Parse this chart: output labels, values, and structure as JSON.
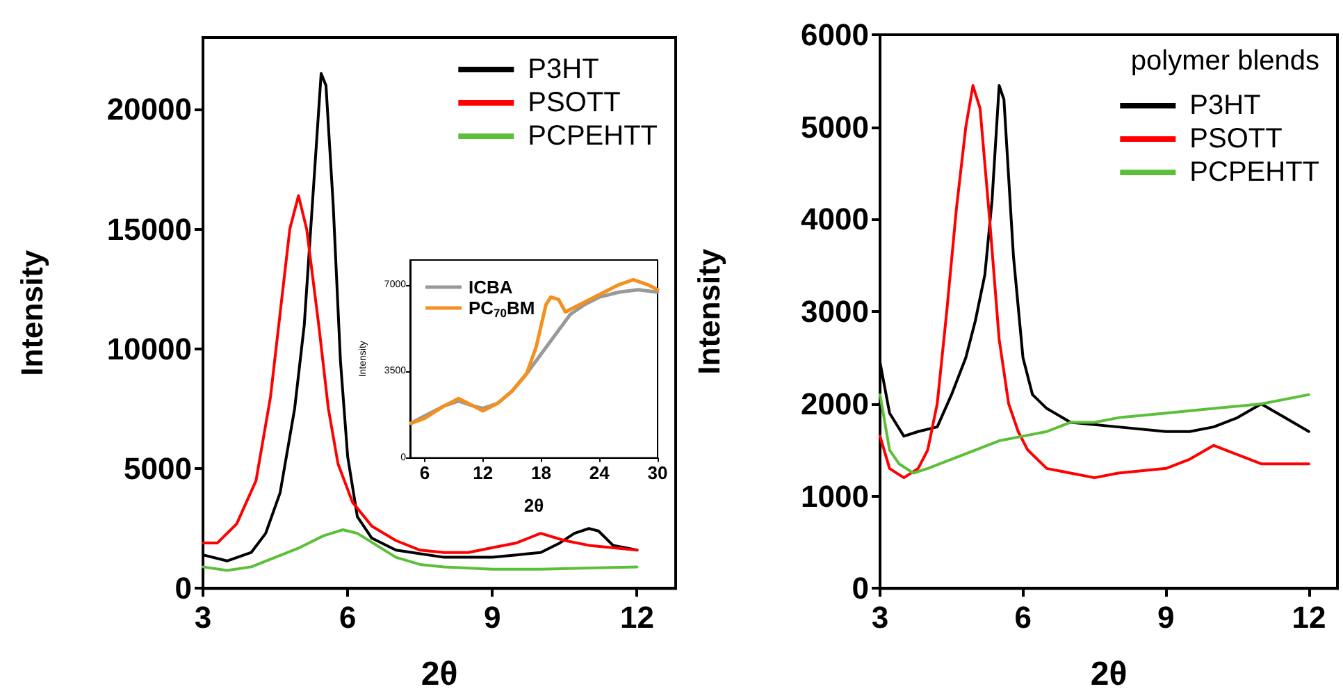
{
  "chart_data": [
    {
      "type": "line",
      "xlabel": "2θ",
      "ylabel": "Intensity",
      "xlim": [
        3,
        12.8
      ],
      "ylim": [
        0,
        23000
      ],
      "xticks": [
        3,
        6,
        9,
        12
      ],
      "yticks": [
        0,
        5000,
        10000,
        15000,
        20000
      ],
      "grid": false,
      "legend": "top right",
      "marker": "none",
      "line_style": "solid",
      "series": [
        {
          "name": "P3HT",
          "color": "#000000",
          "x": [
            3,
            3.5,
            4.0,
            4.3,
            4.6,
            4.9,
            5.1,
            5.3,
            5.45,
            5.55,
            5.7,
            5.85,
            6.0,
            6.2,
            6.5,
            7.0,
            8,
            9,
            9.5,
            10,
            10.4,
            10.7,
            11.0,
            11.2,
            11.5,
            12
          ],
          "values": [
            1400,
            1150,
            1500,
            2300,
            4000,
            7500,
            11000,
            17000,
            21500,
            21000,
            16000,
            9500,
            5500,
            3000,
            2100,
            1600,
            1300,
            1300,
            1400,
            1500,
            1900,
            2300,
            2500,
            2400,
            1800,
            1600
          ]
        },
        {
          "name": "PSOTT",
          "color": "#ff0000",
          "x": [
            3,
            3.3,
            3.7,
            4.1,
            4.4,
            4.6,
            4.8,
            4.98,
            5.15,
            5.4,
            5.6,
            5.8,
            6.1,
            6.5,
            7,
            7.5,
            8,
            8.5,
            9,
            9.5,
            10,
            10.5,
            11,
            12
          ],
          "values": [
            1900,
            1900,
            2700,
            4500,
            8000,
            11500,
            15000,
            16400,
            15000,
            11000,
            7500,
            5200,
            3600,
            2600,
            2000,
            1600,
            1500,
            1500,
            1700,
            1900,
            2300,
            2000,
            1800,
            1600
          ]
        },
        {
          "name": "PCPEHTT",
          "color": "#5cbf3a",
          "x": [
            3,
            3.5,
            4,
            4.5,
            5,
            5.5,
            5.9,
            6.2,
            6.6,
            7,
            7.5,
            8,
            9,
            10,
            11,
            12
          ],
          "values": [
            900,
            750,
            900,
            1300,
            1700,
            2200,
            2450,
            2300,
            1800,
            1300,
            1000,
            900,
            800,
            800,
            850,
            900
          ]
        }
      ]
    },
    {
      "type": "line",
      "xlabel": "2θ",
      "ylabel": "Intensity",
      "xlim": [
        4.5,
        30
      ],
      "ylim": [
        0,
        8000
      ],
      "xticks": [
        6,
        12,
        18,
        24,
        30
      ],
      "yticks": [
        0,
        3500,
        7000
      ],
      "grid": false,
      "legend": "top left",
      "marker": "none",
      "line_style": "solid",
      "series": [
        {
          "name": "ICBA",
          "color": "#999999",
          "x": [
            4.6,
            6,
            8,
            9.5,
            11,
            12,
            13.5,
            15,
            16.5,
            18,
            19.5,
            21,
            22.5,
            24,
            26,
            28,
            30
          ],
          "values": [
            1400,
            1700,
            2100,
            2300,
            2100,
            2000,
            2200,
            2700,
            3400,
            4200,
            5000,
            5800,
            6200,
            6500,
            6700,
            6800,
            6700
          ]
        },
        {
          "name": "PC$_{70}$BM",
          "color": "#f39020",
          "x": [
            4.6,
            6,
            8,
            9.5,
            11,
            12,
            13.5,
            15,
            16.5,
            17.5,
            18.5,
            19,
            19.8,
            20.5,
            22,
            24,
            26,
            27.5,
            29,
            30
          ],
          "values": [
            1400,
            1600,
            2100,
            2400,
            2100,
            1900,
            2200,
            2700,
            3400,
            4500,
            6200,
            6500,
            6400,
            5900,
            6200,
            6600,
            7000,
            7200,
            7000,
            6800
          ]
        }
      ]
    },
    {
      "type": "line",
      "xlabel": "2θ",
      "ylabel": "Intensity",
      "legend_title": "polymer blends",
      "xlim": [
        3,
        12.6
      ],
      "ylim": [
        0,
        6000
      ],
      "xticks": [
        3,
        6,
        9,
        12
      ],
      "yticks": [
        0,
        1000,
        2000,
        3000,
        4000,
        5000,
        6000
      ],
      "grid": false,
      "legend": "top right",
      "marker": "none",
      "line_style": "solid",
      "series": [
        {
          "name": "P3HT",
          "color": "#000000",
          "x": [
            3,
            3.2,
            3.5,
            3.8,
            4.2,
            4.5,
            4.8,
            5.0,
            5.2,
            5.35,
            5.5,
            5.6,
            5.8,
            6.0,
            6.2,
            6.5,
            7,
            8,
            9,
            9.5,
            10,
            10.5,
            11,
            11.5,
            12
          ],
          "values": [
            2450,
            1900,
            1650,
            1700,
            1750,
            2100,
            2500,
            2900,
            3400,
            4200,
            5450,
            5300,
            3600,
            2500,
            2100,
            1950,
            1800,
            1750,
            1700,
            1700,
            1750,
            1850,
            2000,
            1850,
            1700
          ]
        },
        {
          "name": "PSOTT",
          "color": "#ff0000",
          "x": [
            3,
            3.2,
            3.5,
            3.8,
            4.0,
            4.2,
            4.4,
            4.6,
            4.8,
            4.95,
            5.1,
            5.3,
            5.5,
            5.7,
            5.9,
            6.1,
            6.5,
            7,
            7.5,
            8,
            9,
            9.5,
            10,
            10.5,
            11,
            12
          ],
          "values": [
            1650,
            1300,
            1200,
            1300,
            1500,
            2000,
            3000,
            4100,
            5000,
            5450,
            5200,
            4000,
            2700,
            2000,
            1700,
            1500,
            1300,
            1250,
            1200,
            1250,
            1300,
            1400,
            1550,
            1450,
            1350,
            1350
          ]
        },
        {
          "name": "PCPEHTT",
          "color": "#5cbf3a",
          "x": [
            3,
            3.2,
            3.4,
            3.7,
            4,
            4.5,
            5,
            5.5,
            6,
            6.5,
            7,
            7.5,
            8,
            9,
            10,
            11,
            12
          ],
          "values": [
            2100,
            1500,
            1350,
            1250,
            1300,
            1400,
            1500,
            1600,
            1650,
            1700,
            1800,
            1800,
            1850,
            1900,
            1950,
            2000,
            2100
          ]
        }
      ]
    }
  ]
}
